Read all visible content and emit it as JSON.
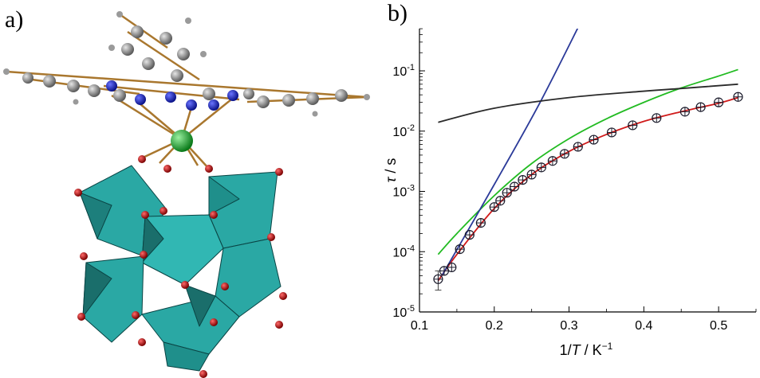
{
  "panel_a": {
    "label": "a)"
  },
  "panel_b": {
    "label": "b)"
  },
  "chart_data": {
    "type": "scatter",
    "xlabel_parts": [
      "1/",
      "T",
      " / K",
      "−1"
    ],
    "ylabel_parts": [
      "τ",
      " / s"
    ],
    "xlim": [
      0.1,
      0.55
    ],
    "ylim_log10": [
      -5,
      -0.3
    ],
    "y_scale": "log",
    "grid": false,
    "x_ticks": [
      {
        "v": 0.1,
        "label": "0.1"
      },
      {
        "v": 0.2,
        "label": "0.2"
      },
      {
        "v": 0.3,
        "label": "0.3"
      },
      {
        "v": 0.4,
        "label": "0.4"
      },
      {
        "v": 0.5,
        "label": "0.5"
      }
    ],
    "y_ticks": [
      {
        "e": -5,
        "label": "10",
        "exp": "-5"
      },
      {
        "e": -4,
        "label": "10",
        "exp": "-4"
      },
      {
        "e": -3,
        "label": "10",
        "exp": "-3"
      },
      {
        "e": -2,
        "label": "10",
        "exp": "-2"
      },
      {
        "e": -1,
        "label": "10",
        "exp": "-1"
      }
    ],
    "points": [
      {
        "x": 0.125,
        "y": 3.5e-05,
        "err_lo": 2.3e-05,
        "err_hi": 4.8e-05
      },
      {
        "x": 0.133,
        "y": 4.8e-05
      },
      {
        "x": 0.143,
        "y": 5.5e-05
      },
      {
        "x": 0.154,
        "y": 0.00011
      },
      {
        "x": 0.167,
        "y": 0.00019
      },
      {
        "x": 0.182,
        "y": 0.0003
      },
      {
        "x": 0.2,
        "y": 0.00055
      },
      {
        "x": 0.208,
        "y": 0.0007
      },
      {
        "x": 0.217,
        "y": 0.00095
      },
      {
        "x": 0.227,
        "y": 0.0012
      },
      {
        "x": 0.238,
        "y": 0.00155
      },
      {
        "x": 0.25,
        "y": 0.0019
      },
      {
        "x": 0.263,
        "y": 0.0025
      },
      {
        "x": 0.278,
        "y": 0.0032
      },
      {
        "x": 0.294,
        "y": 0.0042
      },
      {
        "x": 0.312,
        "y": 0.0055
      },
      {
        "x": 0.333,
        "y": 0.0072
      },
      {
        "x": 0.357,
        "y": 0.0095
      },
      {
        "x": 0.385,
        "y": 0.0125
      },
      {
        "x": 0.417,
        "y": 0.0165
      },
      {
        "x": 0.455,
        "y": 0.021
      },
      {
        "x": 0.476,
        "y": 0.025
      },
      {
        "x": 0.5,
        "y": 0.03
      },
      {
        "x": 0.526,
        "y": 0.037
      }
    ],
    "series": [
      {
        "color": "#d01a1a",
        "points": [
          [
            0.125,
            3.3e-05
          ],
          [
            0.15,
            9e-05
          ],
          [
            0.2,
            0.00052
          ],
          [
            0.25,
            0.0019
          ],
          [
            0.3,
            0.0046
          ],
          [
            0.35,
            0.0088
          ],
          [
            0.4,
            0.0145
          ],
          [
            0.45,
            0.021
          ],
          [
            0.5,
            0.029
          ],
          [
            0.526,
            0.036
          ]
        ]
      },
      {
        "color": "#22bb22",
        "points": [
          [
            0.125,
            9e-05
          ],
          [
            0.15,
            0.0002
          ],
          [
            0.2,
            0.00085
          ],
          [
            0.25,
            0.0029
          ],
          [
            0.3,
            0.0075
          ],
          [
            0.35,
            0.016
          ],
          [
            0.4,
            0.03
          ],
          [
            0.45,
            0.052
          ],
          [
            0.5,
            0.082
          ],
          [
            0.526,
            0.105
          ]
        ]
      },
      {
        "color": "#2b3a99",
        "points": [
          [
            0.13,
            4e-05
          ],
          [
            0.2,
            0.0013
          ],
          [
            0.26,
            0.028
          ],
          [
            0.315,
            0.62
          ]
        ]
      },
      {
        "color": "#2a2a2a",
        "points": [
          [
            0.125,
            0.014
          ],
          [
            0.2,
            0.024
          ],
          [
            0.3,
            0.036
          ],
          [
            0.4,
            0.046
          ],
          [
            0.45,
            0.051
          ],
          [
            0.526,
            0.06
          ]
        ]
      }
    ]
  }
}
